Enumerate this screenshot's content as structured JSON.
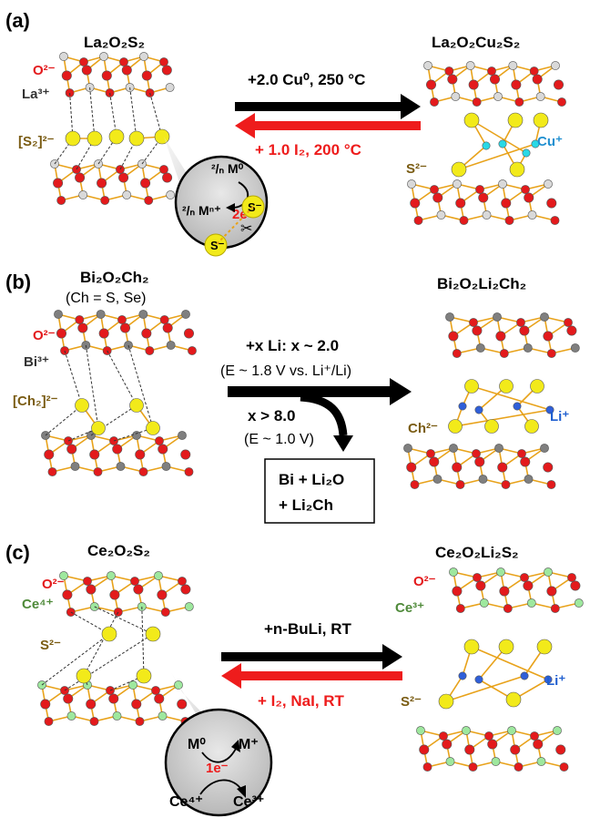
{
  "colors": {
    "oxygen": "#e31a1c",
    "lanthanum": "#d9d9d9",
    "bismuth": "#7f7f7f",
    "cerium": "#9ee89e",
    "sulfur": "#f2ea1a",
    "copper": "#29d9e6",
    "lithium": "#2f5fd9",
    "bond": "#e8a21a",
    "arrow_forward": "#000000",
    "arrow_reverse": "#ee1c1c",
    "ion_label": "#7a5c13",
    "cu_label": "#1f8fd0",
    "li_label": "#1f5fd0",
    "ce_label": "#4f8a3a",
    "bi_label": "#333333"
  },
  "panel_a": {
    "letter": "(a)",
    "left_title": "La₂O₂S₂",
    "right_title": "La₂O₂Cu₂S₂",
    "o_ion": "O²⁻",
    "la_ion": "La³⁺",
    "s2_ion": "[S₂]²⁻",
    "s_ion_right": "S²⁻",
    "cu_ion": "Cu⁺",
    "forward_label": "+2.0 Cu⁰, 250 °C",
    "reverse_label": "+ 1.0 I₂, 200 °C",
    "inset": {
      "m0": "²/ₙ M⁰",
      "mn": "²/ₙ Mⁿ⁺",
      "electrons": "2e⁻",
      "s_minus": "S⁻"
    }
  },
  "panel_b": {
    "letter": "(b)",
    "left_title": "Bi₂O₂Ch₂",
    "left_subtitle": "(Ch = S, Se)",
    "right_title": "Bi₂O₂Li₂Ch₂",
    "o_ion": "O²⁻",
    "bi_ion": "Bi³⁺",
    "ch2_ion": "[Ch₂]²⁻",
    "ch_ion_right": "Ch²⁻",
    "li_ion": "Li⁺",
    "forward_label": "+x Li: x ~ 2.0",
    "forward_sub": "(E ~ 1.8 V vs. Li⁺/Li)",
    "branch_label": "x > 8.0",
    "branch_sub": "(E ~ 1.0 V)",
    "product_line1": "Bi + Li₂O",
    "product_line2": "+ Li₂Ch"
  },
  "panel_c": {
    "letter": "(c)",
    "left_title": "Ce₂O₂S₂",
    "right_title": "Ce₂O₂Li₂S₂",
    "o_ion_left": "O²⁻",
    "ce4_ion": "Ce⁴⁺",
    "s_ion_left": "S²⁻",
    "o_ion_right": "O²⁻",
    "ce3_ion": "Ce³⁺",
    "s_ion_right": "S²⁻",
    "li_ion": "Li⁺",
    "forward_label": "+n-BuLi, RT",
    "reverse_label": "+ I₂, NaI, RT",
    "inset": {
      "m0": "M⁰",
      "m_plus": "M⁺",
      "electron": "1e⁻",
      "ce4": "Ce⁴⁺",
      "ce3": "Ce³⁺"
    }
  }
}
